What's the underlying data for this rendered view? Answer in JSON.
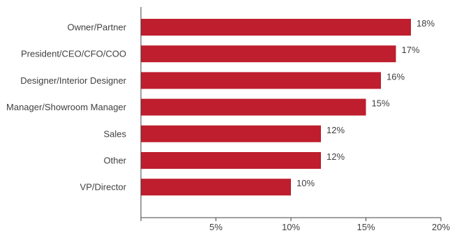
{
  "chart_data": {
    "type": "bar",
    "orientation": "horizontal",
    "categories": [
      "Owner/Partner",
      "President/CEO/CFO/COO",
      "Designer/Interior Designer",
      "Manager/Showroom Manager",
      "Sales",
      "Other",
      "VP/Director"
    ],
    "values": [
      18,
      17,
      16,
      15,
      12,
      12,
      10
    ],
    "value_labels": [
      "18%",
      "17%",
      "16%",
      "15%",
      "12%",
      "12%",
      "10%"
    ],
    "xlim": [
      0,
      20
    ],
    "xticks": [
      5,
      10,
      15,
      20
    ],
    "xtick_labels": [
      "5%",
      "10%",
      "15%",
      "20%"
    ],
    "grid": false,
    "legend": "none",
    "title": "",
    "xlabel": "",
    "ylabel": "",
    "colors": {
      "bar": "#be1e2d",
      "axis": "#404040",
      "text": "#404040"
    }
  }
}
